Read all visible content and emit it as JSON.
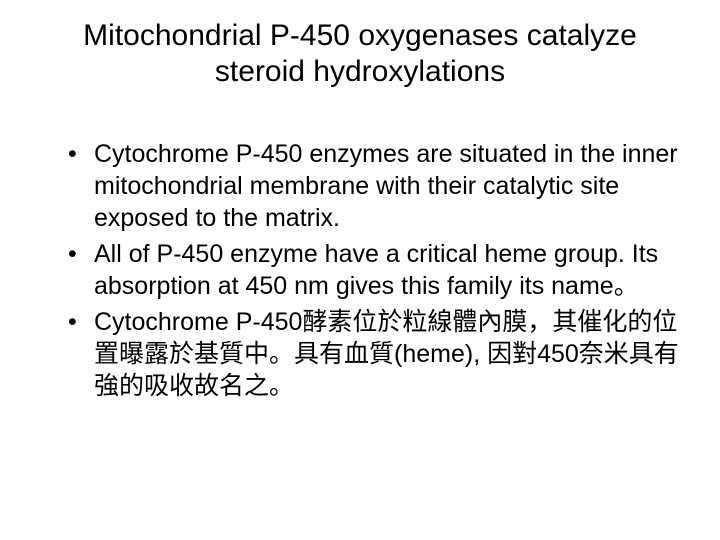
{
  "slide": {
    "title": "Mitochondrial P-450 oxygenases catalyze steroid hydroxylations",
    "bullets": [
      "Cytochrome P-450 enzymes are situated in the inner mitochondrial membrane with their catalytic site exposed to the matrix.",
      "All of P-450 enzyme have a critical heme group. Its absorption at 450 nm gives this family its name。",
      "Cytochrome P-450酵素位於粒線體內膜，其催化的位置曝露於基質中。具有血質(heme), 因對450奈米具有強的吸收故名之。"
    ]
  },
  "style": {
    "background_color": "#ffffff",
    "text_color": "#000000",
    "title_fontsize": 30,
    "body_fontsize": 25,
    "font_family": "Arial"
  }
}
